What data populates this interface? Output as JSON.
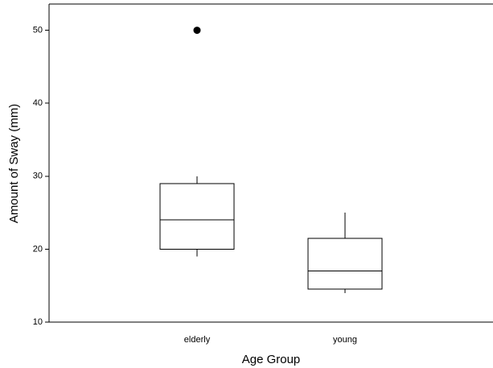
{
  "chart_data": {
    "type": "box",
    "x_label": "Age Group",
    "y_label": "Amount of Sway (mm)",
    "categories": [
      "elderly",
      "young"
    ],
    "whisker_low": [
      19,
      14
    ],
    "q1": [
      20,
      14.5
    ],
    "median": [
      24,
      17
    ],
    "q3": [
      29,
      21.5
    ],
    "whisker_high": [
      30,
      25
    ],
    "outliers": [
      [
        50
      ],
      []
    ],
    "ylim": [
      10,
      53.6
    ],
    "yticks": [
      10,
      20,
      30,
      40,
      50
    ],
    "color": "#000000"
  }
}
